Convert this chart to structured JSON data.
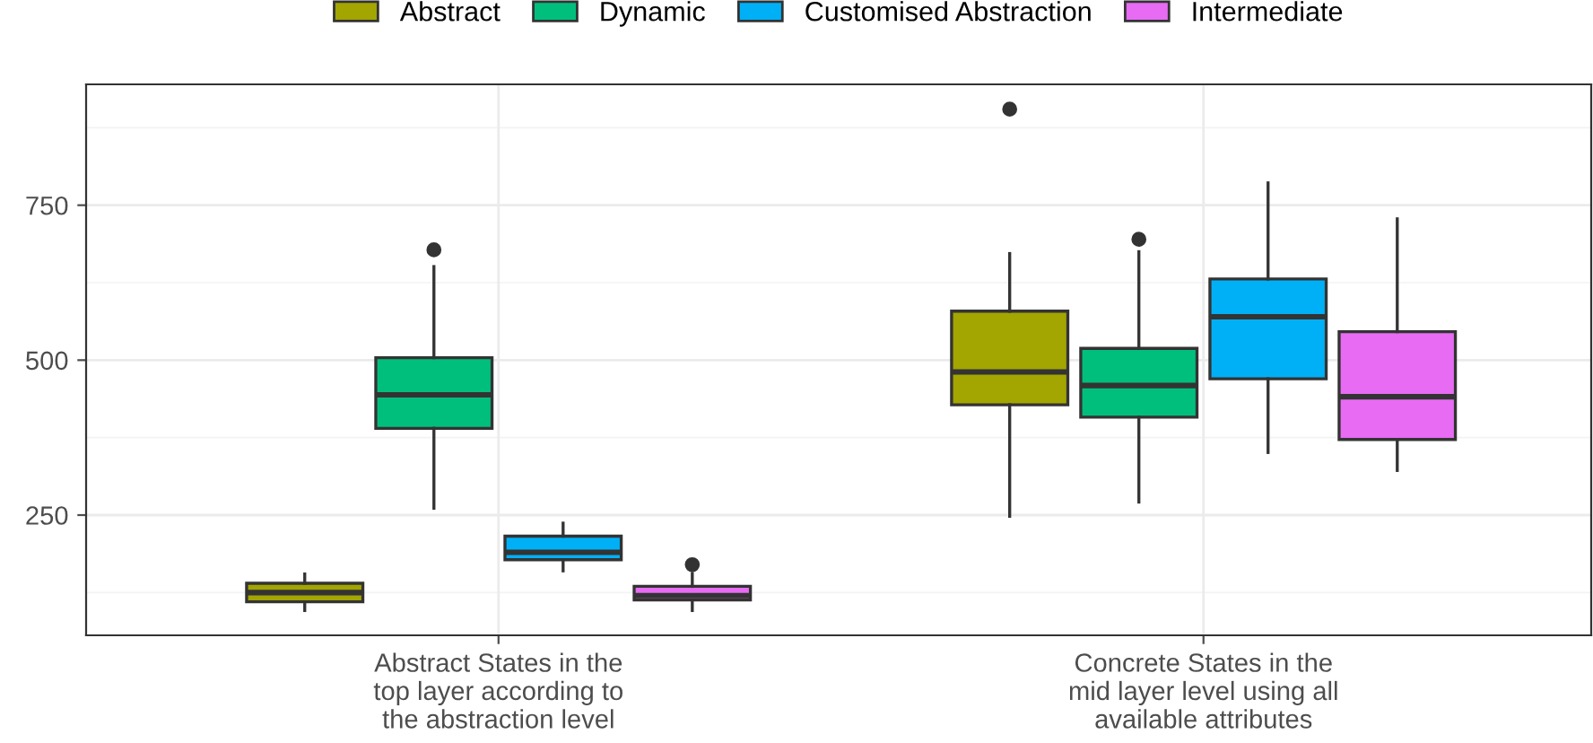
{
  "chart_data": {
    "type": "box",
    "categories": [
      "Abstract States in the\ntop layer according to\nthe abstraction level",
      "Concrete States in the\nmid layer level using all\navailable attributes"
    ],
    "series": [
      {
        "name": "Abstract",
        "color": "#a3a500",
        "boxes": [
          {
            "low": 96,
            "q1": 110,
            "median": 125,
            "q3": 140,
            "high": 155
          },
          {
            "low": 248,
            "q1": 428,
            "median": 481,
            "q3": 579,
            "high": 672,
            "outliers": [
              905
            ]
          }
        ]
      },
      {
        "name": "Dynamic",
        "color": "#00bf7d",
        "boxes": [
          {
            "low": 261,
            "q1": 390,
            "median": 444,
            "q3": 504,
            "high": 651,
            "outliers": [
              678
            ]
          },
          {
            "low": 271,
            "q1": 408,
            "median": 459,
            "q3": 519,
            "high": 675,
            "outliers": [
              695
            ]
          }
        ]
      },
      {
        "name": "Customised Abstraction",
        "color": "#00b0f6",
        "boxes": [
          {
            "low": 160,
            "q1": 178,
            "median": 190,
            "q3": 216,
            "high": 237
          },
          {
            "low": 351,
            "q1": 470,
            "median": 570,
            "q3": 631,
            "high": 786
          }
        ]
      },
      {
        "name": "Intermediate",
        "color": "#e76bf3",
        "boxes": [
          {
            "low": 96,
            "q1": 113,
            "median": 120,
            "q3": 135,
            "high": 156,
            "outliers": [
              170
            ]
          },
          {
            "low": 322,
            "q1": 372,
            "median": 441,
            "q3": 546,
            "high": 728
          }
        ]
      }
    ],
    "ylim": [
      56,
      945
    ],
    "yticks": [
      250,
      500,
      750
    ],
    "grid": true,
    "legend": "top"
  }
}
